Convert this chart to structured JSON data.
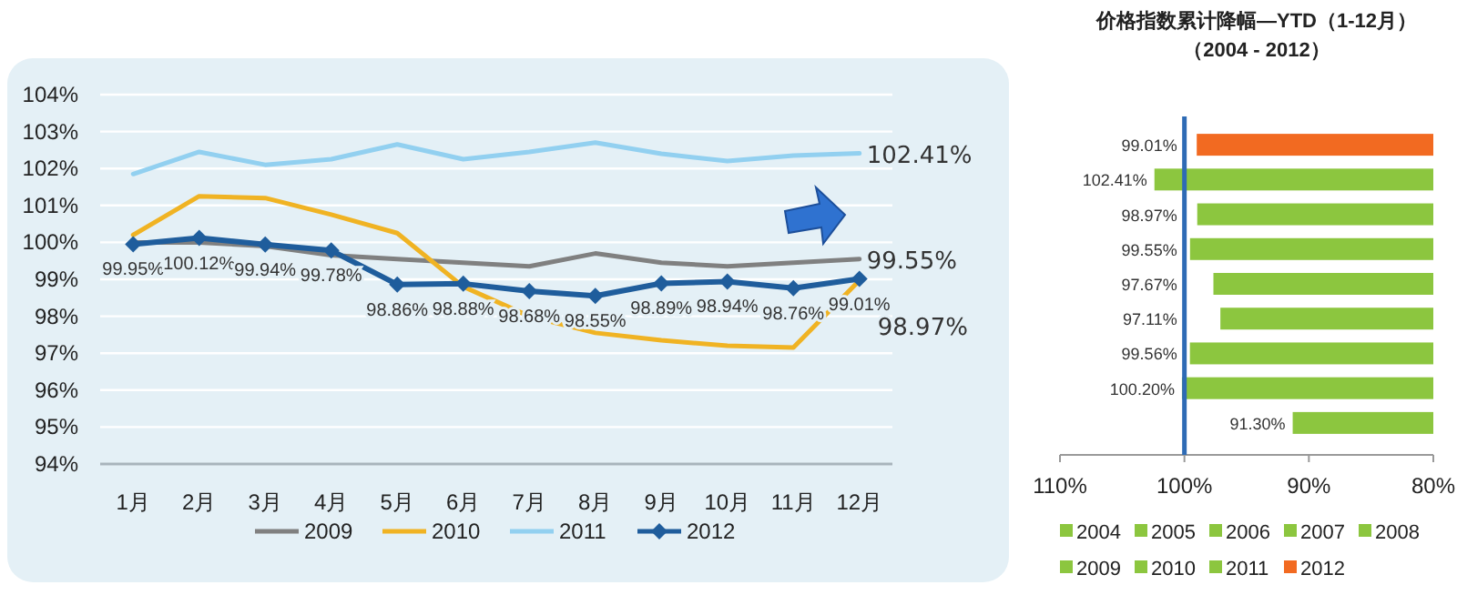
{
  "chart_data": [
    {
      "type": "line",
      "categories": [
        "1月",
        "2月",
        "3月",
        "4月",
        "5月",
        "6月",
        "7月",
        "8月",
        "9月",
        "10月",
        "11月",
        "12月"
      ],
      "series": [
        {
          "name": "2009",
          "color": "#808080",
          "marker": "none",
          "values": [
            100.0,
            100.0,
            99.9,
            99.65,
            99.55,
            99.45,
            99.35,
            99.7,
            99.45,
            99.35,
            99.45,
            99.55
          ],
          "value_labels": [
            null,
            null,
            null,
            null,
            null,
            null,
            null,
            null,
            null,
            null,
            null,
            "99.55%"
          ]
        },
        {
          "name": "2010",
          "color": "#f0b323",
          "marker": "none",
          "values": [
            100.2,
            101.25,
            101.2,
            100.75,
            100.25,
            98.8,
            98.0,
            97.55,
            97.35,
            97.2,
            97.15,
            98.97
          ],
          "value_labels": [
            null,
            null,
            null,
            null,
            null,
            null,
            null,
            null,
            null,
            null,
            null,
            "98.97%"
          ]
        },
        {
          "name": "2011",
          "color": "#92d0f0",
          "marker": "none",
          "values": [
            101.85,
            102.45,
            102.1,
            102.25,
            102.65,
            102.25,
            102.45,
            102.7,
            102.4,
            102.2,
            102.35,
            102.41
          ],
          "value_labels": [
            null,
            null,
            null,
            null,
            null,
            null,
            null,
            null,
            null,
            null,
            null,
            "102.41%"
          ]
        },
        {
          "name": "2012",
          "color": "#1f5d9c",
          "marker": "diamond",
          "values": [
            99.95,
            100.12,
            99.94,
            99.78,
            98.86,
            98.88,
            98.68,
            98.55,
            98.89,
            98.94,
            98.76,
            99.01
          ],
          "value_labels": [
            "99.95%",
            "100.12%",
            "99.94%",
            "99.78%",
            "98.86%",
            "98.88%",
            "98.68%",
            "98.55%",
            "98.89%",
            "98.94%",
            "98.76%",
            "99.01%"
          ]
        }
      ],
      "ylim": [
        94,
        104
      ],
      "yticks": [
        {
          "value": 94,
          "label": "94%"
        },
        {
          "value": 95,
          "label": "95%"
        },
        {
          "value": 96,
          "label": "96%"
        },
        {
          "value": 97,
          "label": "97%"
        },
        {
          "value": 98,
          "label": "98%"
        },
        {
          "value": 99,
          "label": "99%"
        },
        {
          "value": 100,
          "label": "100%"
        },
        {
          "value": 101,
          "label": "101%"
        },
        {
          "value": 102,
          "label": "102%"
        },
        {
          "value": 103,
          "label": "103%"
        },
        {
          "value": 104,
          "label": "104%"
        }
      ],
      "grid": "y",
      "legend": "bottom",
      "line_style": "solid"
    },
    {
      "type": "bar",
      "orientation": "horizontal",
      "title": "价格指数累计降幅—YTD（1-12月）",
      "subtitle": "（2004 - 2012）",
      "categories": [
        null,
        null,
        null,
        null,
        null,
        null,
        null,
        null,
        null
      ],
      "series": [
        {
          "name": "2004",
          "color": "#8cc63f",
          "values": [
            null,
            null,
            null,
            null,
            null,
            null,
            null,
            null,
            91.3
          ],
          "value_labels": [
            null,
            null,
            null,
            null,
            null,
            null,
            null,
            null,
            "91.30%"
          ]
        },
        {
          "name": "2005",
          "color": "#8cc63f",
          "values": [
            null,
            null,
            null,
            null,
            null,
            null,
            null,
            100.2,
            null
          ],
          "value_labels": [
            null,
            null,
            null,
            null,
            null,
            null,
            null,
            "100.20%",
            null
          ]
        },
        {
          "name": "2006",
          "color": "#8cc63f",
          "values": [
            null,
            null,
            null,
            null,
            null,
            null,
            99.56,
            null,
            null
          ],
          "value_labels": [
            null,
            null,
            null,
            null,
            null,
            null,
            "99.56%",
            null,
            null
          ]
        },
        {
          "name": "2007",
          "color": "#8cc63f",
          "values": [
            null,
            null,
            null,
            null,
            null,
            97.11,
            null,
            null,
            null
          ],
          "value_labels": [
            null,
            null,
            null,
            null,
            null,
            "97.11%",
            null,
            null,
            null
          ]
        },
        {
          "name": "2008",
          "color": "#8cc63f",
          "values": [
            null,
            null,
            null,
            null,
            97.67,
            null,
            null,
            null,
            null
          ],
          "value_labels": [
            null,
            null,
            null,
            null,
            "97.67%",
            null,
            null,
            null,
            null
          ]
        },
        {
          "name": "2009",
          "color": "#8cc63f",
          "values": [
            null,
            null,
            null,
            99.55,
            null,
            null,
            null,
            null,
            null
          ],
          "value_labels": [
            null,
            null,
            null,
            "99.55%",
            null,
            null,
            null,
            null,
            null
          ]
        },
        {
          "name": "2010",
          "color": "#8cc63f",
          "values": [
            null,
            null,
            98.97,
            null,
            null,
            null,
            null,
            null,
            null
          ],
          "value_labels": [
            null,
            null,
            "98.97%",
            null,
            null,
            null,
            null,
            null,
            null
          ]
        },
        {
          "name": "2011",
          "color": "#8cc63f",
          "values": [
            null,
            102.41,
            null,
            null,
            null,
            null,
            null,
            null,
            null
          ],
          "value_labels": [
            null,
            "102.41%",
            null,
            null,
            null,
            null,
            null,
            null,
            null
          ]
        },
        {
          "name": "2012",
          "color": "#f26a21",
          "values": [
            99.01,
            null,
            null,
            null,
            null,
            null,
            null,
            null,
            null
          ],
          "value_labels": [
            "99.01%",
            null,
            null,
            null,
            null,
            null,
            null,
            null,
            null
          ]
        }
      ],
      "xlim": [
        110,
        80
      ],
      "xticks": [
        {
          "value": 110,
          "label": "110%"
        },
        {
          "value": 100,
          "label": "100%"
        },
        {
          "value": 90,
          "label": "90%"
        },
        {
          "value": 80,
          "label": "80%"
        }
      ],
      "ref_lines": [
        {
          "axis": "x",
          "value": 100,
          "color": "#2e6bb5"
        }
      ],
      "legend": "bottom",
      "tick_labels": "x"
    }
  ]
}
